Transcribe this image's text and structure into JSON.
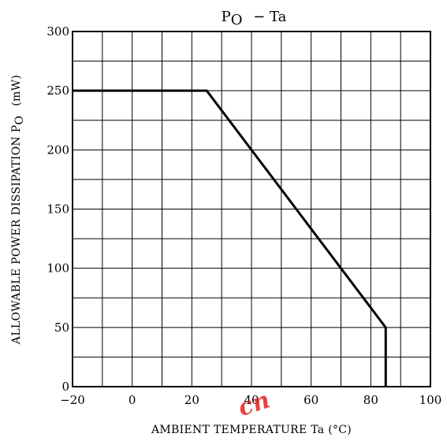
{
  "chart_data": {
    "type": "line",
    "title": "P",
    "title_subscript": "O",
    "title_suffix": " − Ta",
    "xlabel": "AMBIENT TEMPERATURE   Ta   (°C)",
    "ylabel": "ALLOWABLE POWER DISSIPATION   P",
    "ylabel_subscript": "O",
    "ylabel_unit": "(mW)",
    "xlim": [
      -20,
      100
    ],
    "ylim": [
      0,
      300
    ],
    "x_ticks": [
      -20,
      0,
      20,
      40,
      60,
      80,
      100
    ],
    "x_tick_labels": [
      "−20",
      "0",
      "20",
      "40",
      "60",
      "80",
      "100"
    ],
    "y_ticks": [
      0,
      50,
      100,
      150,
      200,
      250,
      300
    ],
    "y_tick_labels": [
      "0",
      "50",
      "100",
      "150",
      "200",
      "250",
      "300"
    ],
    "x_grid_step": 10,
    "y_grid_step": 25,
    "grid": true,
    "series": [
      {
        "x": [
          -20,
          25,
          85,
          85
        ],
        "y": [
          250,
          250,
          50,
          0
        ]
      }
    ]
  },
  "watermark": "cn"
}
